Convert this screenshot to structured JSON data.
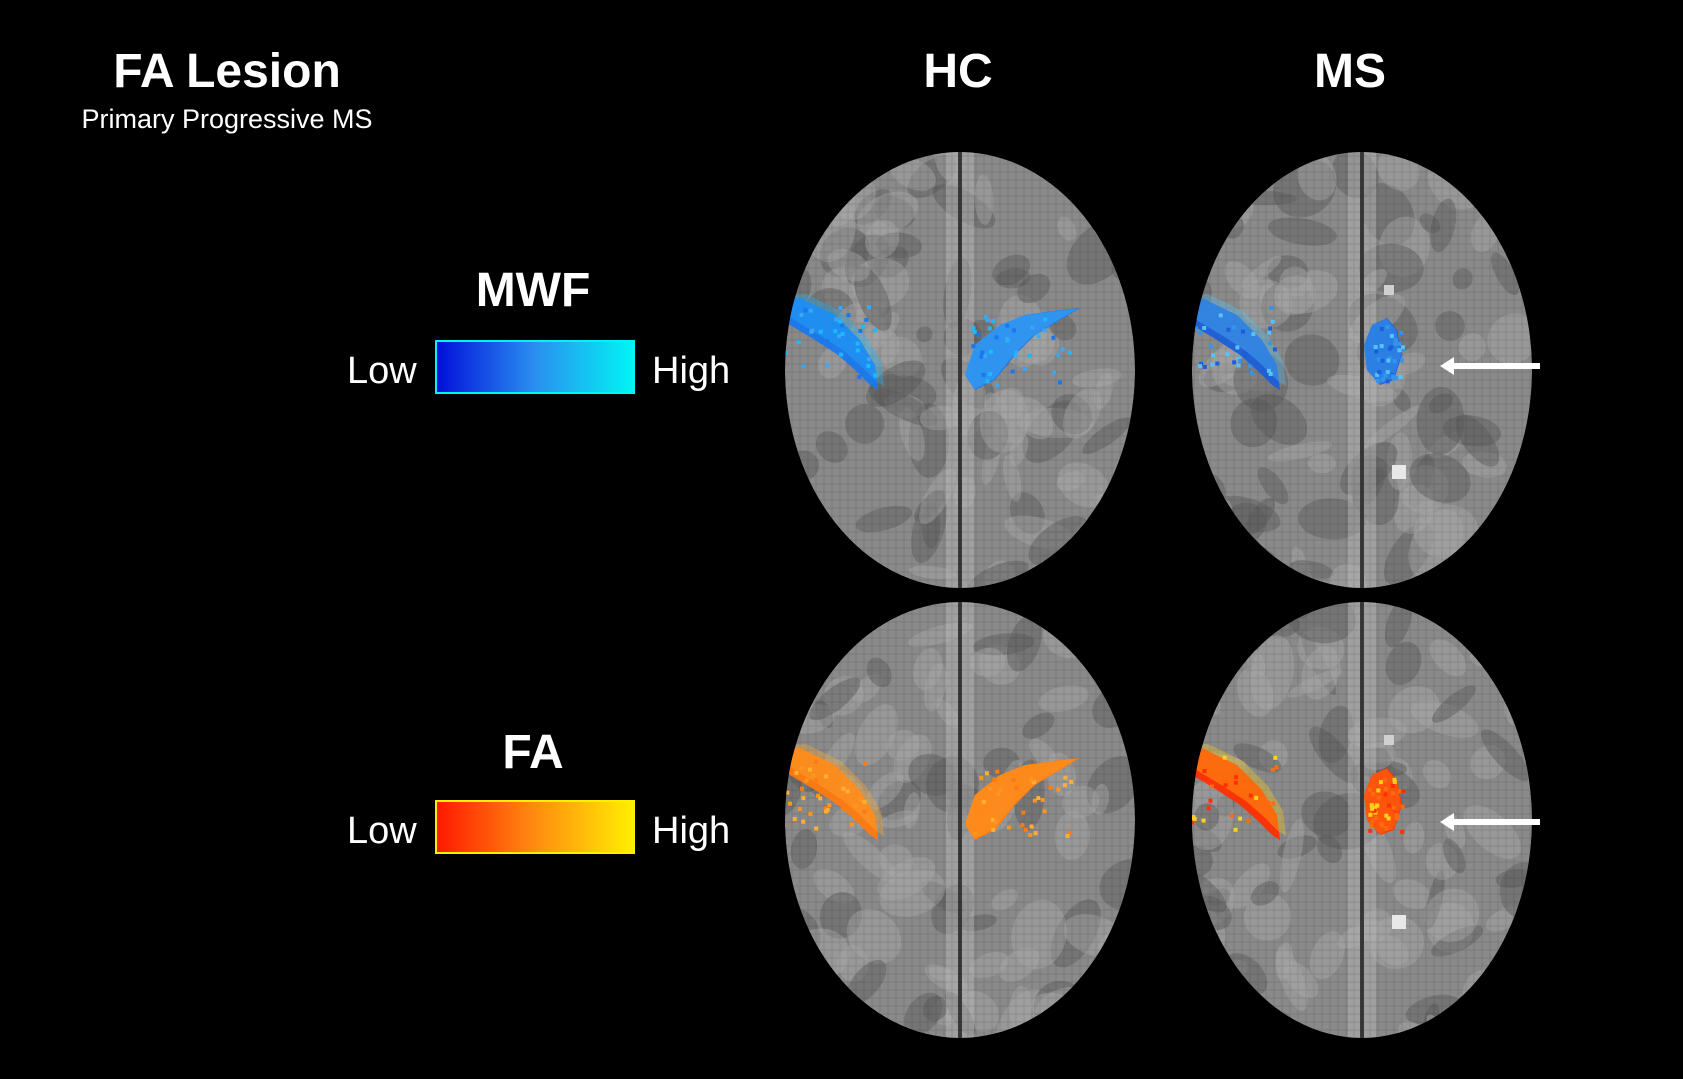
{
  "header": {
    "title": "FA Lesion",
    "subtitle": "Primary Progressive MS"
  },
  "columns": [
    "HC",
    "MS"
  ],
  "legends": [
    {
      "title": "MWF",
      "low_label": "Low",
      "high_label": "High",
      "colors": [
        "#0010d8",
        "#2a8ff0",
        "#00f4f4"
      ]
    },
    {
      "title": "FA",
      "low_label": "Low",
      "high_label": "High",
      "colors": [
        "#ff1a00",
        "#ff8c10",
        "#ffee00"
      ]
    }
  ],
  "panels": [
    {
      "row": "MWF",
      "column": "HC",
      "overlay_colors": [
        "#1a78ee",
        "#3aa6f4",
        "#1fb8ff"
      ]
    },
    {
      "row": "MWF",
      "column": "MS",
      "overlay_colors": [
        "#1b5fd8",
        "#3394ee",
        "#57c2f8"
      ]
    },
    {
      "row": "FA",
      "column": "HC",
      "overlay_colors": [
        "#ff7a10",
        "#ff9520",
        "#ffb030"
      ]
    },
    {
      "row": "FA",
      "column": "MS",
      "overlay_colors": [
        "#ff3000",
        "#ff6a10",
        "#ffd21a"
      ]
    }
  ],
  "arrow_color": "#ffffff"
}
